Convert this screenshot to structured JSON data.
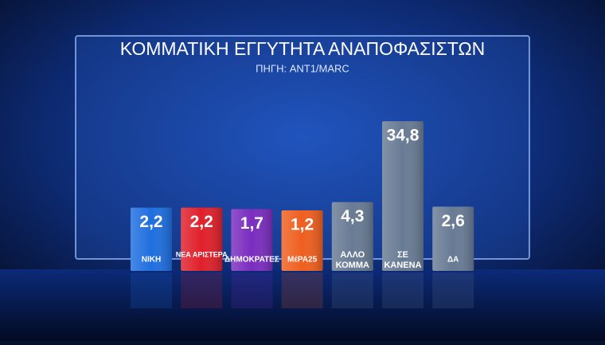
{
  "chart_data": {
    "type": "bar",
    "title": "ΚΟΜΜΑΤΙΚΗ ΕΓΓΥΤΗΤΑ ΑΝΑΠΟΦΑΣΙΣΤΩΝ",
    "subtitle": "ΠΗΓΗ: ANT1/MARC",
    "categories": [
      "ΝΙΚΗ",
      "ΝΕΑ ΑΡΙΣΤΕΡΑ",
      "ΔΗΜΟΚΡΑΤΕΣ",
      "ΜέΡΑ25",
      "ΑΛΛΟ ΚΟΜΜΑ",
      "ΣΕ ΚΑΝΕΝΑ",
      "ΔΑ"
    ],
    "values": [
      2.2,
      2.2,
      1.7,
      1.2,
      4.3,
      34.8,
      2.6
    ],
    "value_labels": [
      "2,2",
      "2,2",
      "1,7",
      "1,2",
      "4,3",
      "34,8",
      "2,6"
    ],
    "colors": [
      "#1f6fe0",
      "#e0202b",
      "#7b2dbf",
      "#ef5f1f",
      "#687b94",
      "#687b94",
      "#687b94"
    ]
  }
}
